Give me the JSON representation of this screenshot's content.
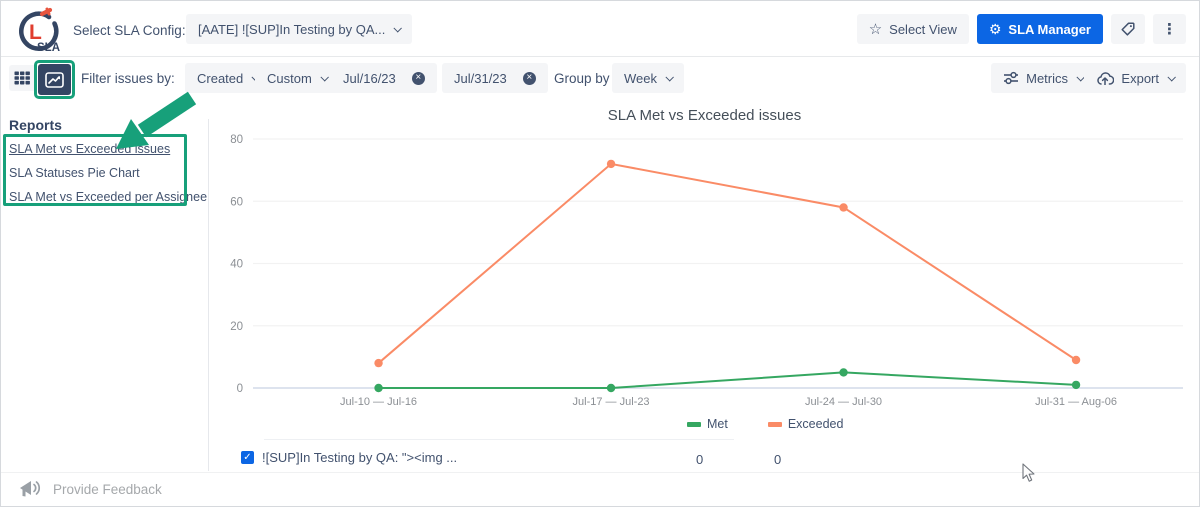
{
  "header": {
    "logo": {
      "letter": "L",
      "brand": "SLA"
    },
    "select_config_label": "Select SLA Config:",
    "config_value": "[AATE] ![SUP]In Testing by QA...",
    "select_view_label": "Select View",
    "sla_manager_label": "SLA Manager"
  },
  "filter_bar": {
    "filter_label": "Filter issues by:",
    "field_dropdown": "Created",
    "range_dropdown": "Custom",
    "date_from": "Jul/16/23",
    "date_to": "Jul/31/23",
    "group_by_label": "Group by",
    "group_dropdown": "Week",
    "metrics_label": "Metrics",
    "export_label": "Export"
  },
  "sidebar": {
    "title": "Reports",
    "items": [
      {
        "label": "SLA Met vs Exceeded issues",
        "active": true
      },
      {
        "label": "SLA Statuses Pie Chart",
        "active": false
      },
      {
        "label": "SLA Met vs Exceeded per Assignee",
        "active": false
      }
    ]
  },
  "chart_data": {
    "type": "line",
    "title": "SLA Met vs Exceeded issues",
    "categories": [
      "Jul-10 — Jul-16",
      "Jul-17 — Jul-23",
      "Jul-24 — Jul-30",
      "Jul-31 — Aug-06"
    ],
    "series": [
      {
        "name": "Met",
        "color": "#35A761",
        "values": [
          0,
          0,
          5,
          1
        ]
      },
      {
        "name": "Exceeded",
        "color": "#FA8B66",
        "values": [
          8,
          72,
          58,
          9
        ]
      }
    ],
    "ylim": [
      0,
      80
    ],
    "yticks": [
      0,
      20,
      40,
      60,
      80
    ],
    "grid": true,
    "legend_position": "bottom"
  },
  "table": {
    "rows": [
      {
        "checked": true,
        "label": "![SUP]In Testing by QA: \"><img ...",
        "met": "0",
        "exceeded": "0"
      }
    ]
  },
  "footer": {
    "feedback_label": "Provide Feedback"
  },
  "icons": {
    "star": "☆",
    "gear": "⚙",
    "kebab": "⋮",
    "close": "×",
    "check": "✓"
  },
  "colors": {
    "accent_blue": "#0C66E4",
    "navy": "#344563",
    "annotation_green": "#17A07A",
    "met_green": "#35A761",
    "exceeded_orange": "#FA8B66"
  }
}
